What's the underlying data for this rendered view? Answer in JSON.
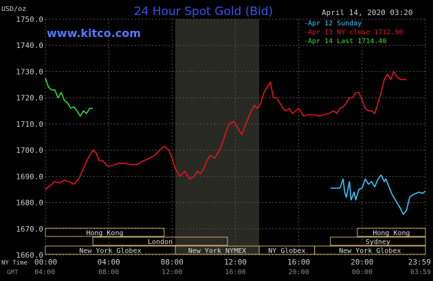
{
  "chart_data": {
    "type": "line",
    "title": "24 Hour Spot Gold (Bid)",
    "ylabel": "USD/oz",
    "timestamp": "April 14, 2020 03:20",
    "source": "www.kitco.com",
    "ylim": [
      1660,
      1750
    ],
    "yticks": [
      "1750.0",
      "1740.0",
      "1730.0",
      "1720.0",
      "1710.0",
      "1700.0",
      "1690.0",
      "1680.0",
      "1670.0",
      "1660.0"
    ],
    "x_primary_label": "NY Time",
    "x_secondary_label": "GMT",
    "x_ticks_ny": [
      "00:00",
      "04:00",
      "08:00",
      "12:00",
      "16:00",
      "20:00",
      "23:59"
    ],
    "x_ticks_gmt": [
      "04:00",
      "08:00",
      "12:00",
      "16:00",
      "20:00",
      "00:00",
      "03:59"
    ],
    "legend": [
      "Apr 12 Sunday",
      "Apr 13 NY close 1712.90",
      "Apr 14 Last 1714.40"
    ],
    "colors": {
      "apr12": "#33ccff",
      "apr13": "#e8141e",
      "apr14": "#33dd33",
      "title": "#3355ee",
      "source": "#5577ff",
      "axis_text": "#cccccc",
      "grid": "#555555",
      "session_box": "#c8b06a",
      "nymex_shade": "#2a2a24"
    },
    "sessions": [
      {
        "name": "Hong Kong",
        "start": 0,
        "end": 7.5
      },
      {
        "name": "Hong Kong",
        "start": 19.7,
        "end": 24
      },
      {
        "name": "London",
        "start": 3,
        "end": 11.5
      },
      {
        "name": "Sydney",
        "start": 18,
        "end": 24
      },
      {
        "name": "New York Globex",
        "start": 0,
        "end": 8.2
      },
      {
        "name": "New York NYMEX",
        "start": 8.2,
        "end": 13.5
      },
      {
        "name": "NY Globex",
        "start": 13.5,
        "end": 17
      },
      {
        "name": "New York Globex",
        "start": 17,
        "end": 24
      }
    ],
    "nymex_period": [
      8.2,
      13.5
    ],
    "series": [
      {
        "name": "Apr 12 Sunday",
        "color_key": "apr12",
        "points": [
          [
            18,
            1685.5
          ],
          [
            18.6,
            1685.5
          ]
        ]
      },
      {
        "name": "Apr 12 Sunday",
        "color_key": "apr12",
        "points": [
          [
            18.6,
            1685.5
          ],
          [
            18.8,
            1689
          ],
          [
            18.9,
            1684
          ],
          [
            19,
            1682
          ],
          [
            19.2,
            1688
          ],
          [
            19.3,
            1681
          ],
          [
            19.5,
            1684
          ],
          [
            19.6,
            1681
          ],
          [
            19.8,
            1685
          ],
          [
            20,
            1685.5
          ],
          [
            20.2,
            1689
          ],
          [
            20.4,
            1687
          ],
          [
            20.6,
            1688
          ],
          [
            20.8,
            1686
          ],
          [
            21,
            1689
          ],
          [
            21.2,
            1690.5
          ],
          [
            21.4,
            1688
          ],
          [
            21.5,
            1689
          ],
          [
            21.7,
            1686
          ],
          [
            21.9,
            1683
          ],
          [
            22.1,
            1681
          ],
          [
            22.2,
            1680
          ],
          [
            22.4,
            1678
          ],
          [
            22.6,
            1675.5
          ],
          [
            22.8,
            1677
          ],
          [
            23,
            1682
          ],
          [
            23.2,
            1683
          ],
          [
            23.4,
            1683.5
          ],
          [
            23.6,
            1684
          ],
          [
            23.8,
            1683.5
          ],
          [
            23.99,
            1684.3
          ]
        ]
      },
      {
        "name": "Apr 13 NY close 1712.90",
        "color_key": "apr13",
        "points": [
          [
            0,
            1685
          ],
          [
            0.3,
            1686.5
          ],
          [
            0.6,
            1688
          ],
          [
            0.9,
            1687.5
          ],
          [
            1.2,
            1688.5
          ],
          [
            1.5,
            1688
          ],
          [
            1.8,
            1687
          ],
          [
            2.1,
            1689
          ],
          [
            2.4,
            1693
          ],
          [
            2.7,
            1697
          ],
          [
            3,
            1700
          ],
          [
            3.2,
            1699
          ],
          [
            3.4,
            1696
          ],
          [
            3.6,
            1696
          ],
          [
            3.9,
            1694
          ],
          [
            4.2,
            1694
          ],
          [
            4.6,
            1695
          ],
          [
            5,
            1695
          ],
          [
            5.4,
            1694.5
          ],
          [
            5.8,
            1694.5
          ],
          [
            6.2,
            1696
          ],
          [
            6.6,
            1697
          ],
          [
            6.9,
            1698
          ],
          [
            7.2,
            1700
          ],
          [
            7.5,
            1701.5
          ],
          [
            7.8,
            1700
          ],
          [
            8,
            1697
          ],
          [
            8.2,
            1693
          ],
          [
            8.5,
            1690
          ],
          [
            8.8,
            1692
          ],
          [
            9.1,
            1689
          ],
          [
            9.4,
            1690
          ],
          [
            9.6,
            1692
          ],
          [
            9.8,
            1691
          ],
          [
            10,
            1693
          ],
          [
            10.2,
            1696
          ],
          [
            10.4,
            1698
          ],
          [
            10.7,
            1697
          ],
          [
            11,
            1700
          ],
          [
            11.2,
            1703
          ],
          [
            11.4,
            1707
          ],
          [
            11.6,
            1710
          ],
          [
            11.9,
            1711
          ],
          [
            12.1,
            1709
          ],
          [
            12.4,
            1706
          ],
          [
            12.6,
            1709
          ],
          [
            12.8,
            1712
          ],
          [
            13,
            1715
          ],
          [
            13.2,
            1717
          ],
          [
            13.4,
            1716
          ],
          [
            13.6,
            1718
          ],
          [
            13.8,
            1722
          ],
          [
            14,
            1724
          ],
          [
            14.2,
            1726
          ],
          [
            14.4,
            1720
          ],
          [
            14.6,
            1720
          ],
          [
            14.8,
            1718
          ],
          [
            15,
            1716
          ],
          [
            15.2,
            1715
          ],
          [
            15.4,
            1716
          ],
          [
            15.6,
            1714
          ],
          [
            15.8,
            1715
          ],
          [
            16,
            1716
          ],
          [
            16.3,
            1713
          ],
          [
            16.6,
            1713.5
          ],
          [
            17,
            1713.5
          ],
          [
            17.3,
            1713
          ],
          [
            17.6,
            1713.5
          ],
          [
            17.9,
            1714
          ],
          [
            18.2,
            1715
          ],
          [
            18.4,
            1714
          ],
          [
            18.6,
            1716
          ],
          [
            18.8,
            1716.5
          ],
          [
            19,
            1718
          ],
          [
            19.2,
            1720
          ],
          [
            19.4,
            1720
          ],
          [
            19.6,
            1722
          ],
          [
            19.8,
            1722
          ],
          [
            20,
            1719
          ],
          [
            20.2,
            1716
          ],
          [
            20.4,
            1715
          ],
          [
            20.6,
            1715
          ],
          [
            20.8,
            1714
          ],
          [
            21,
            1718
          ],
          [
            21.2,
            1722
          ],
          [
            21.4,
            1727
          ],
          [
            21.6,
            1729
          ],
          [
            21.8,
            1727
          ],
          [
            22,
            1730
          ],
          [
            22.2,
            1728
          ],
          [
            22.4,
            1727
          ],
          [
            22.6,
            1727
          ],
          [
            22.8,
            1727
          ]
        ]
      },
      {
        "name": "Apr 14 Last 1714.40",
        "color_key": "apr14",
        "points": [
          [
            0,
            1727.5
          ],
          [
            0.2,
            1724
          ],
          [
            0.4,
            1723
          ],
          [
            0.6,
            1723
          ],
          [
            0.8,
            1720
          ],
          [
            1,
            1722
          ],
          [
            1.2,
            1719
          ],
          [
            1.4,
            1718
          ],
          [
            1.6,
            1716
          ],
          [
            1.8,
            1716.5
          ],
          [
            2,
            1715
          ],
          [
            2.2,
            1713
          ],
          [
            2.4,
            1715
          ],
          [
            2.6,
            1714
          ],
          [
            2.8,
            1716
          ],
          [
            3,
            1716
          ]
        ]
      }
    ]
  }
}
